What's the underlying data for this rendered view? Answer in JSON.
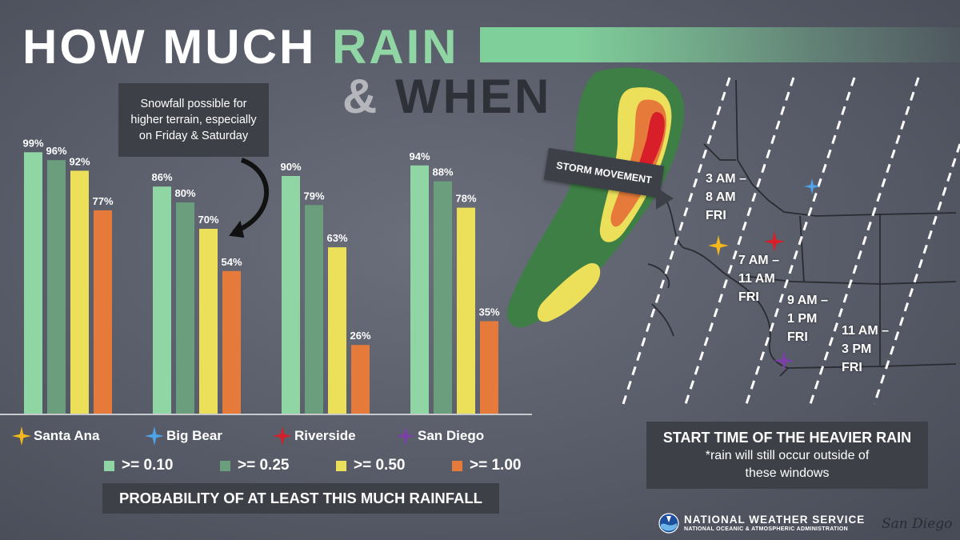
{
  "title": {
    "line1_part1": "HOW MUCH",
    "line1_part2": "RAIN",
    "line2_part1": "&",
    "line2_part2": "WHEN"
  },
  "snow_note": "Snowfall possible for higher terrain, especially on Friday & Saturday",
  "chart_data": {
    "type": "bar",
    "title": "PROBABILITY OF AT LEAST THIS MUCH RAINFALL",
    "categories": [
      "Santa Ana",
      "Big Bear",
      "Riverside",
      "San Diego"
    ],
    "series": [
      {
        "name": ">= 0.10",
        "color": "#8fd6a4",
        "values": [
          99,
          86,
          90,
          94
        ]
      },
      {
        "name": ">= 0.25",
        "color": "#6a9e7c",
        "values": [
          96,
          80,
          79,
          88
        ]
      },
      {
        "name": ">= 0.50",
        "color": "#ece05a",
        "values": [
          92,
          70,
          63,
          78
        ]
      },
      {
        "name": ">= 1.00",
        "color": "#e67a3a",
        "values": [
          77,
          54,
          26,
          35
        ]
      }
    ],
    "value_suffix": "%",
    "ylim": [
      0,
      100
    ],
    "grid": false,
    "legend_position": "bottom",
    "data_labels": true
  },
  "city_colors": {
    "Santa Ana": "#f2b81c",
    "Big Bear": "#4fa3e8",
    "Riverside": "#d81e28",
    "San Diego": "#7b3fa8"
  },
  "storm_label": "STORM MOVEMENT",
  "time_windows": [
    {
      "line1": "3 AM –",
      "line2": "8 AM",
      "line3": "FRI"
    },
    {
      "line1": "7 AM –",
      "line2": "11 AM",
      "line3": "FRI"
    },
    {
      "line1": "9 AM –",
      "line2": "1 PM",
      "line3": "FRI"
    },
    {
      "line1": "11 AM –",
      "line2": "3 PM",
      "line3": "FRI"
    }
  ],
  "start_box": {
    "heading": "START TIME OF THE HEAVIER RAIN",
    "note_line1": "*rain will still occur outside of",
    "note_line2": "these windows"
  },
  "footer": {
    "agency": "NATIONAL WEATHER SERVICE",
    "parent": "NATIONAL OCEANIC & ATMOSPHERIC ADMINISTRATION",
    "office": "San Diego"
  }
}
